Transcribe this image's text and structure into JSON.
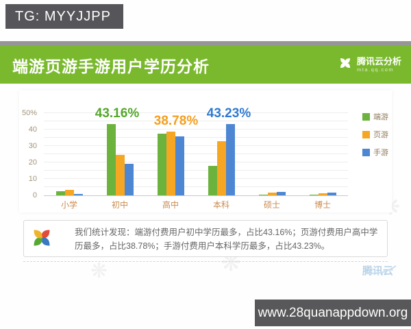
{
  "badges": {
    "tg": "TG: MYYJJPP",
    "url": "www.28quanappdown.org"
  },
  "header": {
    "title": "端游页游手游用户学历分析",
    "logo_text": "腾讯云分析",
    "logo_subtext": "mta.qq.com",
    "bg_color": "#7ab92d"
  },
  "chart_data": {
    "type": "bar",
    "title": "端游页游手游用户学历分析",
    "categories": [
      "小学",
      "初中",
      "高中",
      "本科",
      "硕士",
      "博士"
    ],
    "series": [
      {
        "name": "端游",
        "color": "#6cb33d",
        "values": [
          2.5,
          43.16,
          37.5,
          18,
          0.5,
          0.4
        ]
      },
      {
        "name": "页游",
        "color": "#f5a623",
        "values": [
          3.5,
          24.5,
          38.78,
          33,
          1.5,
          1.2
        ]
      },
      {
        "name": "手游",
        "color": "#4d86d3",
        "values": [
          1,
          19,
          36,
          43.23,
          2,
          1.6
        ]
      }
    ],
    "ylim": [
      0,
      50
    ],
    "grid_step": 5,
    "grid": true,
    "legend_position": "right",
    "yticks": [
      {
        "v": 0,
        "label": "0"
      },
      {
        "v": 10,
        "label": "10"
      },
      {
        "v": 20,
        "label": "20"
      },
      {
        "v": 30,
        "label": "30"
      },
      {
        "v": 40,
        "label": "40"
      },
      {
        "v": 50,
        "label": "50%"
      }
    ],
    "annotations": [
      {
        "text": "43.16%",
        "value": 43.16,
        "category_index": 1,
        "color": "#55a82a"
      },
      {
        "text": "38.78%",
        "value": 38.78,
        "category_index": 2,
        "color": "#f59f1d"
      },
      {
        "text": "43.23%",
        "value": 43.23,
        "category_index": 3,
        "color": "#2f7ad1"
      }
    ]
  },
  "summary": {
    "text": "我们统计发现：端游付费用户初中学历最多，占比43.16%；页游付费用户高中学历最多，占比38.78%；手游付费用户本科学历最多，占比43.23%。"
  },
  "watermark": {
    "text": "腾讯云"
  }
}
